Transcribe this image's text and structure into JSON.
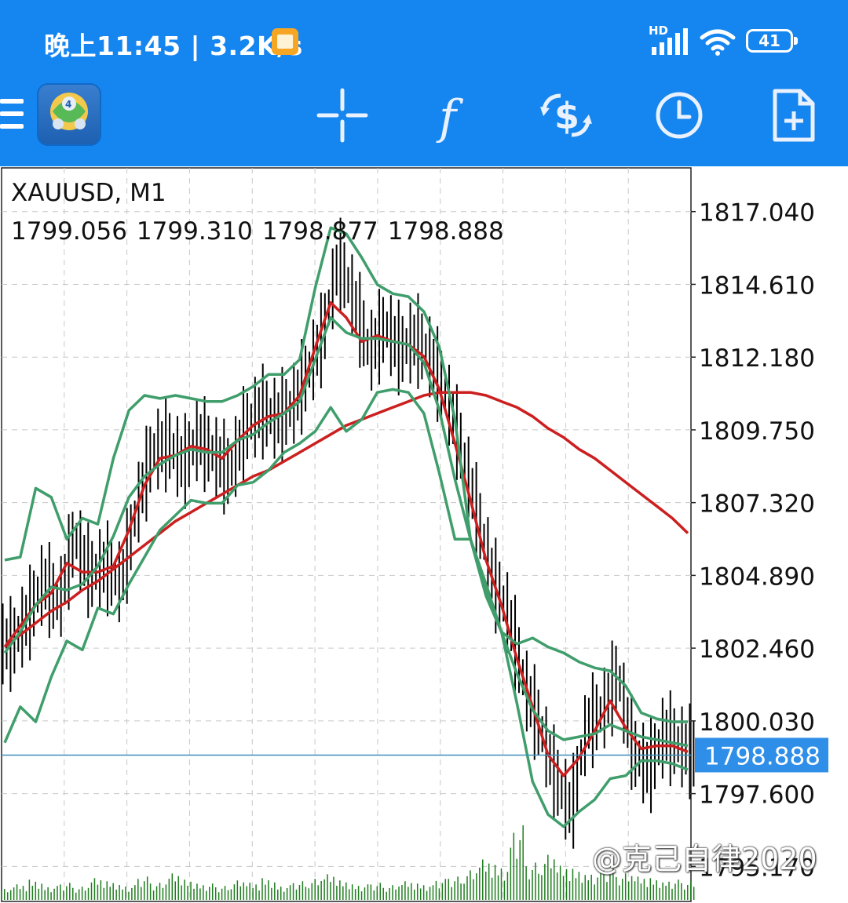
{
  "status_bar": {
    "time_speed": "晚上11:45 | 3.2K/s",
    "network_badge": "HD",
    "battery": "41"
  },
  "toolbar": {
    "items": [
      "menu-icon",
      "metatrader-4-logo",
      "crosshair-icon",
      "indicators-f-icon",
      "trade-dollar-icon",
      "clock-icon",
      "new-order-icon"
    ]
  },
  "chart": {
    "symbol": "XAUUSD, M1",
    "ohlc": [
      "1799.056",
      "1799.310",
      "1798.877",
      "1798.888"
    ],
    "current_price_label": "1798.888"
  },
  "watermark": "@克己自律2020",
  "colors": {
    "accent": "#1585f0",
    "ma_fast": "#cc1f1f",
    "ma_slow": "#cc1f1f",
    "bands": "#3f9e6b",
    "candles": "#000000",
    "volume": "#1e7d1e",
    "price_line": "#3d8fb8",
    "price_label_bg": "#2f8fe8"
  },
  "chart_data": {
    "type": "line",
    "subtype": "bar-chart-with-bollinger-bands-and-moving-averages",
    "title": "XAUUSD, M1",
    "y_ticks": [
      "1817.040",
      "1814.610",
      "1812.180",
      "1809.750",
      "1807.320",
      "1804.890",
      "1802.460",
      "1800.030",
      "1797.600",
      "1795.170"
    ],
    "ylim": [
      1794.0,
      1818.5
    ],
    "grid": true,
    "current_price": 1798.888,
    "x": [
      0,
      1,
      2,
      3,
      4,
      5,
      6,
      7,
      8,
      9,
      10,
      11,
      12,
      13,
      14,
      15,
      16,
      17,
      18,
      19,
      20,
      21,
      22,
      23,
      24,
      25,
      26,
      27,
      28,
      29,
      30,
      31,
      32,
      33,
      34,
      35,
      36,
      37,
      38,
      39,
      40,
      41,
      42,
      43,
      44
    ],
    "close": [
      1802.6,
      1803.5,
      1804.7,
      1803.9,
      1806.2,
      1804.9,
      1805.2,
      1804.6,
      1807.1,
      1809.0,
      1809.3,
      1808.6,
      1809.5,
      1808.9,
      1808.3,
      1809.8,
      1810.4,
      1810.1,
      1810.5,
      1811.6,
      1812.9,
      1815.4,
      1814.1,
      1812.3,
      1813.2,
      1812.4,
      1812.8,
      1812.1,
      1810.8,
      1809.0,
      1806.8,
      1804.7,
      1803.5,
      1801.2,
      1799.8,
      1798.1,
      1797.0,
      1799.9,
      1800.3,
      1801.6,
      1799.0,
      1798.4,
      1799.6,
      1799.2,
      1798.9
    ],
    "series": [
      {
        "name": "",
        "role": "fast-ma",
        "values": [
          1802.5,
          1803.2,
          1803.9,
          1804.3,
          1805.3,
          1805.0,
          1805.0,
          1805.2,
          1806.4,
          1807.9,
          1808.8,
          1808.9,
          1809.2,
          1809.1,
          1808.8,
          1809.4,
          1809.9,
          1810.2,
          1810.3,
          1810.9,
          1812.5,
          1814.0,
          1813.5,
          1812.7,
          1812.9,
          1812.7,
          1812.6,
          1812.2,
          1811.1,
          1809.3,
          1807.4,
          1805.4,
          1803.9,
          1802.1,
          1800.5,
          1798.9,
          1798.2,
          1798.8,
          1799.7,
          1800.7,
          1799.8,
          1799.1,
          1799.2,
          1799.2,
          1799.0
        ]
      },
      {
        "name": "",
        "role": "slow-ma",
        "values": [
          1802.5,
          1802.9,
          1803.3,
          1803.7,
          1804.0,
          1804.4,
          1804.7,
          1805.1,
          1805.5,
          1805.9,
          1806.3,
          1806.7,
          1807.0,
          1807.3,
          1807.6,
          1807.9,
          1808.2,
          1808.4,
          1808.7,
          1809.0,
          1809.3,
          1809.6,
          1809.9,
          1810.1,
          1810.3,
          1810.5,
          1810.7,
          1810.9,
          1811.0,
          1811.0,
          1811.0,
          1810.9,
          1810.7,
          1810.5,
          1810.2,
          1809.8,
          1809.5,
          1809.1,
          1808.8,
          1808.4,
          1808.0,
          1807.6,
          1807.2,
          1806.8,
          1806.3
        ]
      },
      {
        "name": "",
        "role": "band-upper",
        "values": [
          1805.4,
          1805.5,
          1807.8,
          1807.5,
          1806.1,
          1806.8,
          1806.6,
          1808.8,
          1810.4,
          1810.9,
          1810.8,
          1810.9,
          1810.8,
          1810.7,
          1810.7,
          1810.9,
          1811.2,
          1811.6,
          1811.6,
          1812.1,
          1814.5,
          1816.5,
          1816.3,
          1815.5,
          1814.6,
          1814.3,
          1814.2,
          1813.7,
          1812.5,
          1810.1,
          1806.1,
          1804.2,
          1803.0,
          1802.6,
          1802.8,
          1802.5,
          1802.3,
          1802.0,
          1801.8,
          1801.7,
          1801.2,
          1800.3,
          1800.1,
          1800.0,
          1800.0
        ]
      },
      {
        "name": "",
        "role": "band-middle",
        "values": [
          1802.3,
          1803.0,
          1803.9,
          1804.5,
          1804.4,
          1804.6,
          1805.2,
          1806.2,
          1807.5,
          1808.2,
          1808.6,
          1808.9,
          1809.1,
          1809.0,
          1809.0,
          1809.4,
          1809.6,
          1810.0,
          1810.3,
          1810.7,
          1812.1,
          1813.5,
          1813.0,
          1812.8,
          1812.8,
          1812.7,
          1812.6,
          1812.0,
          1810.4,
          1808.1,
          1806.1,
          1804.4,
          1803.0,
          1801.6,
          1800.4,
          1799.7,
          1799.4,
          1799.5,
          1799.6,
          1799.9,
          1799.7,
          1799.5,
          1799.4,
          1799.3,
          1799.2
        ]
      },
      {
        "name": "",
        "role": "band-lower",
        "values": [
          1799.3,
          1800.5,
          1800.0,
          1801.5,
          1802.7,
          1802.4,
          1803.8,
          1803.6,
          1804.6,
          1805.5,
          1806.4,
          1806.9,
          1807.4,
          1807.3,
          1807.3,
          1807.9,
          1808.0,
          1808.4,
          1809.0,
          1809.3,
          1809.7,
          1810.5,
          1809.7,
          1810.1,
          1811.0,
          1811.1,
          1811.0,
          1810.3,
          1808.3,
          1806.1,
          1806.1,
          1804.6,
          1803.0,
          1800.6,
          1798.0,
          1796.9,
          1796.5,
          1797.0,
          1797.4,
          1798.1,
          1798.2,
          1798.7,
          1798.7,
          1798.6,
          1798.4
        ]
      }
    ],
    "volume": [
      14,
      20,
      26,
      18,
      22,
      17,
      28,
      24,
      19,
      30,
      22,
      34,
      26,
      21,
      18,
      25,
      22,
      28,
      19,
      24,
      27,
      33,
      25,
      20,
      22,
      19,
      24,
      21,
      27,
      30,
      38,
      52,
      45,
      96,
      48,
      58,
      44,
      40,
      36,
      42,
      34,
      30,
      28,
      26,
      24
    ]
  }
}
